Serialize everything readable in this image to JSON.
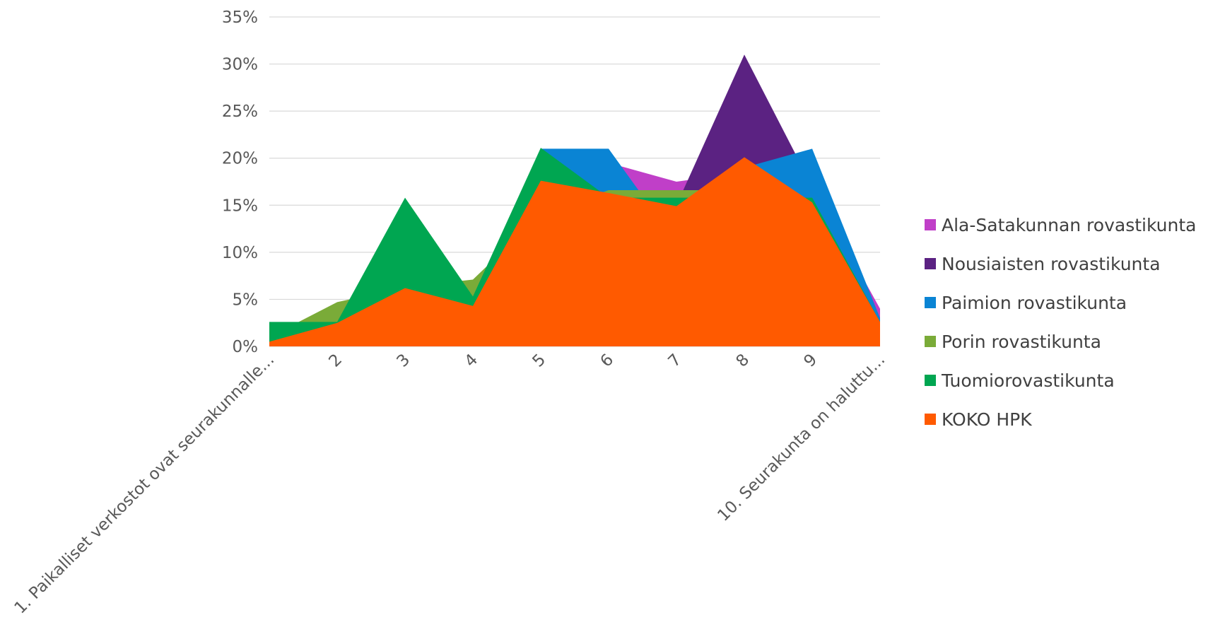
{
  "chart_data": {
    "type": "area",
    "title": "",
    "xlabel": "",
    "ylabel": "",
    "categories": [
      "1. Paikalliset verkostot ovat seurakunnalle...",
      "2",
      "3",
      "4",
      "5",
      "6",
      "7",
      "8",
      "9",
      "10. Seurakunta on haluttu..."
    ],
    "y_ticks": [
      "0%",
      "5%",
      "10%",
      "15%",
      "20%",
      "25%",
      "30%",
      "35%"
    ],
    "ylim": [
      0,
      35
    ],
    "grid": true,
    "legend_position": "right",
    "series": [
      {
        "name": "Ala-Satakunnan rovastikunta",
        "color": "#c03fc8",
        "values": [
          0,
          1.5,
          3,
          5.5,
          15,
          19.5,
          17.5,
          18.5,
          17,
          4
        ]
      },
      {
        "name": "Nousiaisten rovastikunta",
        "color": "#5b2282",
        "values": [
          0,
          2,
          5,
          5,
          12,
          16,
          15,
          31,
          17,
          3
        ]
      },
      {
        "name": "Paimion rovastikunta",
        "color": "#0a84d4",
        "values": [
          0,
          2.5,
          4,
          4,
          21,
          21,
          11,
          19,
          21,
          3
        ]
      },
      {
        "name": "Porin rovastikunta",
        "color": "#7aab38",
        "values": [
          1,
          4.7,
          6.3,
          7.1,
          14,
          16.6,
          16.6,
          16.6,
          8,
          1
        ]
      },
      {
        "name": "Tuomiorovastikunta",
        "color": "#00a651",
        "values": [
          2.6,
          2.6,
          15.8,
          5.3,
          21.1,
          15.8,
          15.8,
          15.8,
          15.8,
          2.6
        ]
      },
      {
        "name": "KOKO HPK",
        "color": "#ff5a00",
        "values": [
          0.5,
          2.5,
          6.2,
          4.3,
          17.6,
          16.3,
          14.9,
          20.1,
          15.3,
          2.6
        ]
      }
    ]
  }
}
